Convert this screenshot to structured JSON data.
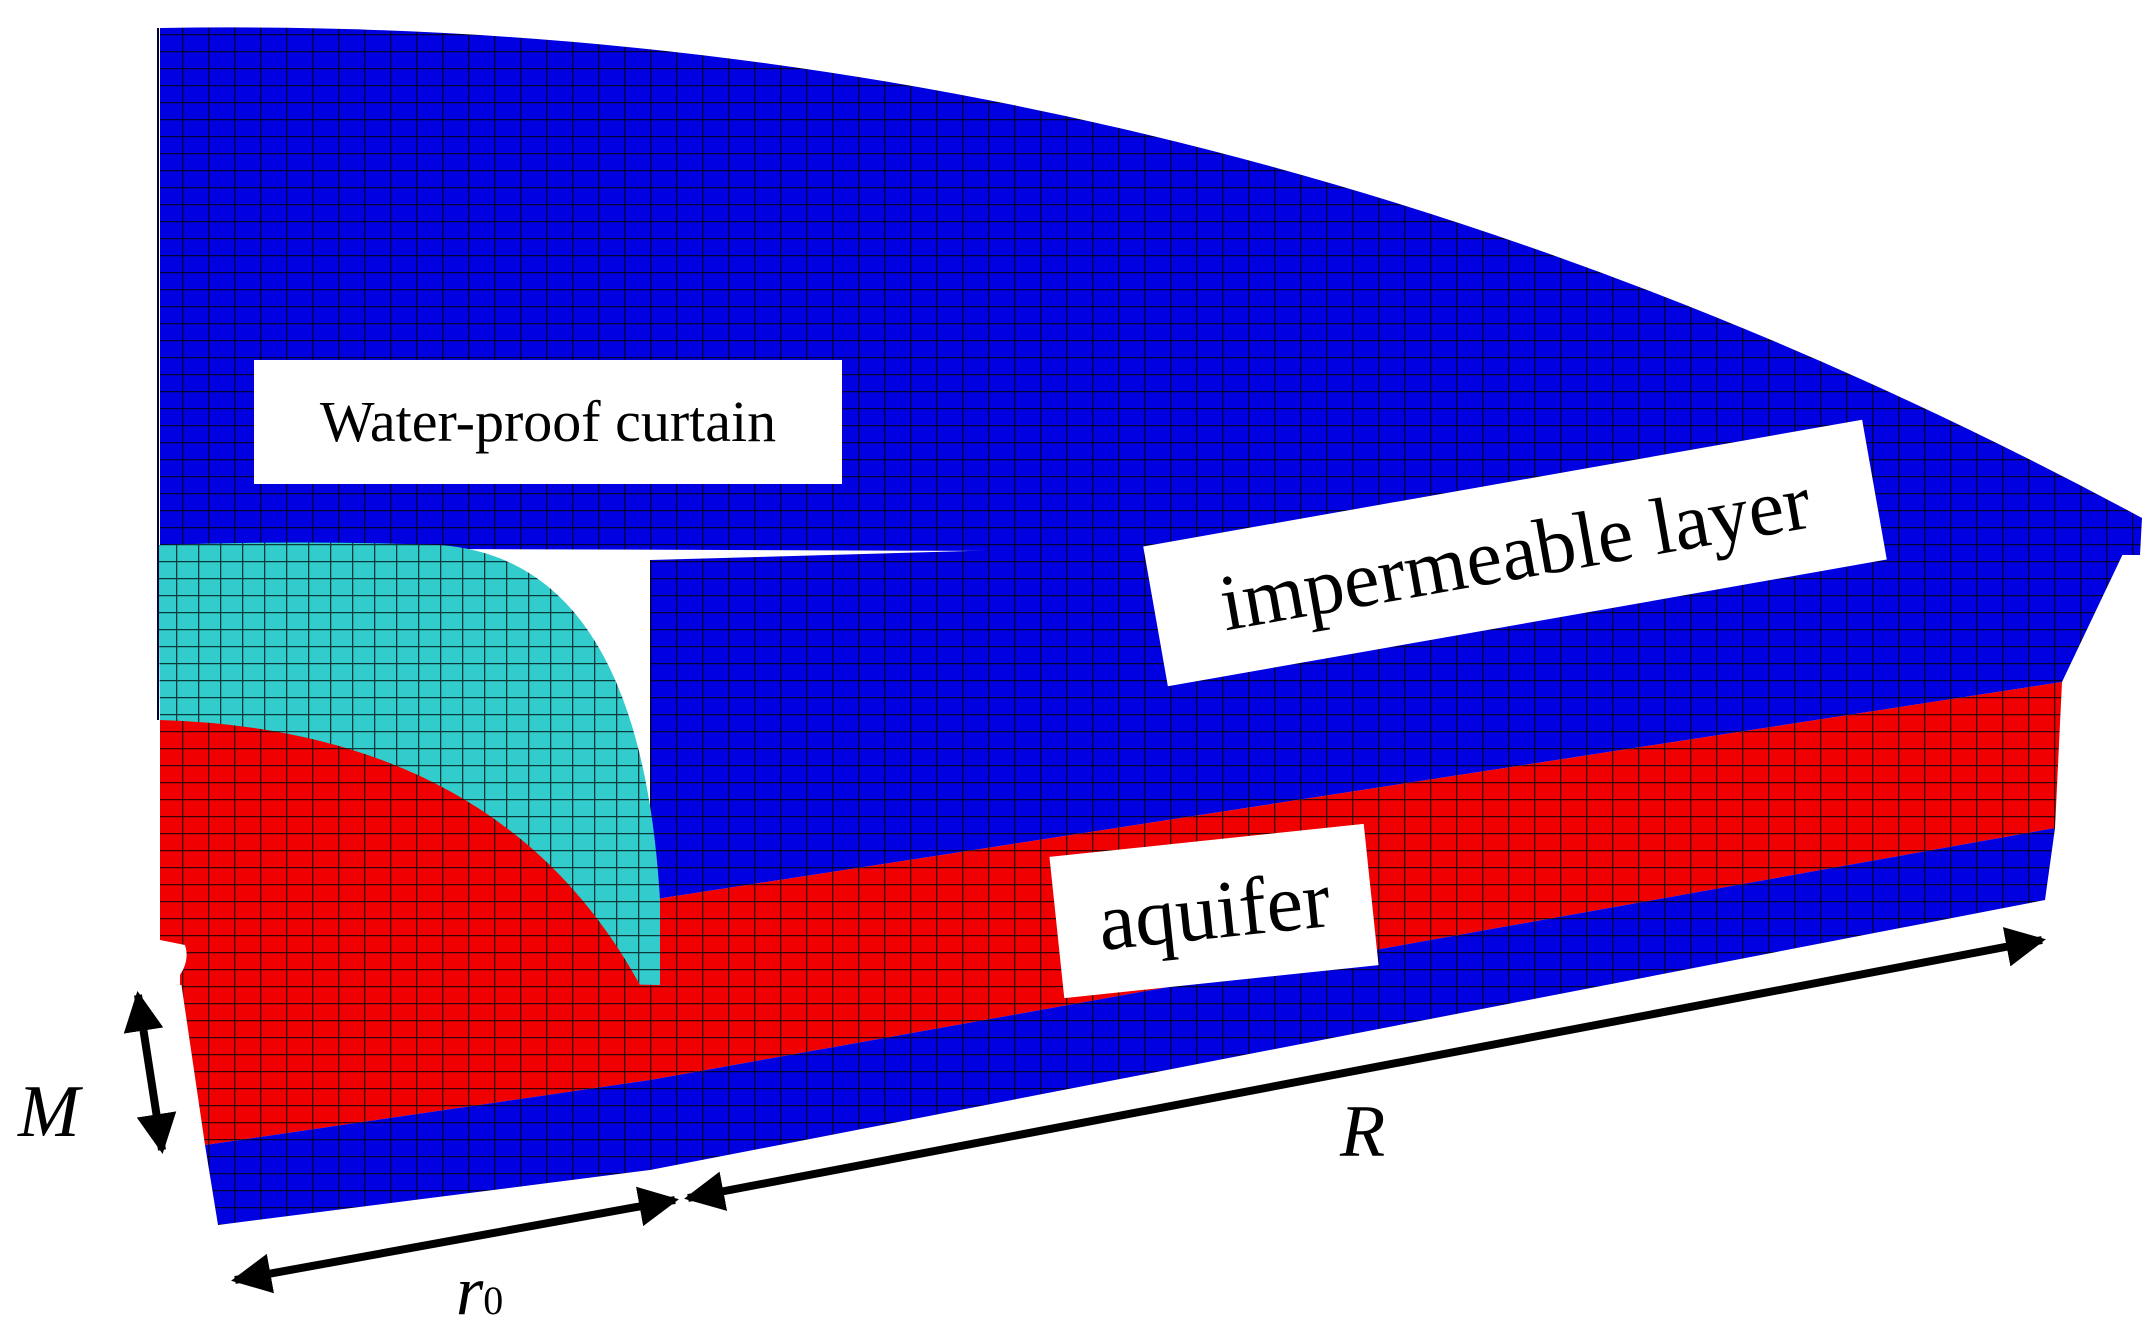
{
  "labels": {
    "curtain": "Water-proof curtain",
    "impermeable": "impermeable layer",
    "aquifer": "aquifer"
  },
  "dimensions": {
    "M": "M",
    "R": "R",
    "r0_base": "r",
    "r0_sub": "0"
  },
  "colors": {
    "impermeable_layer": "#0000E0",
    "aquifer": "#F00000",
    "curtain": "#33CCCC",
    "mesh_line": "#000033",
    "arrow": "#000000"
  }
}
